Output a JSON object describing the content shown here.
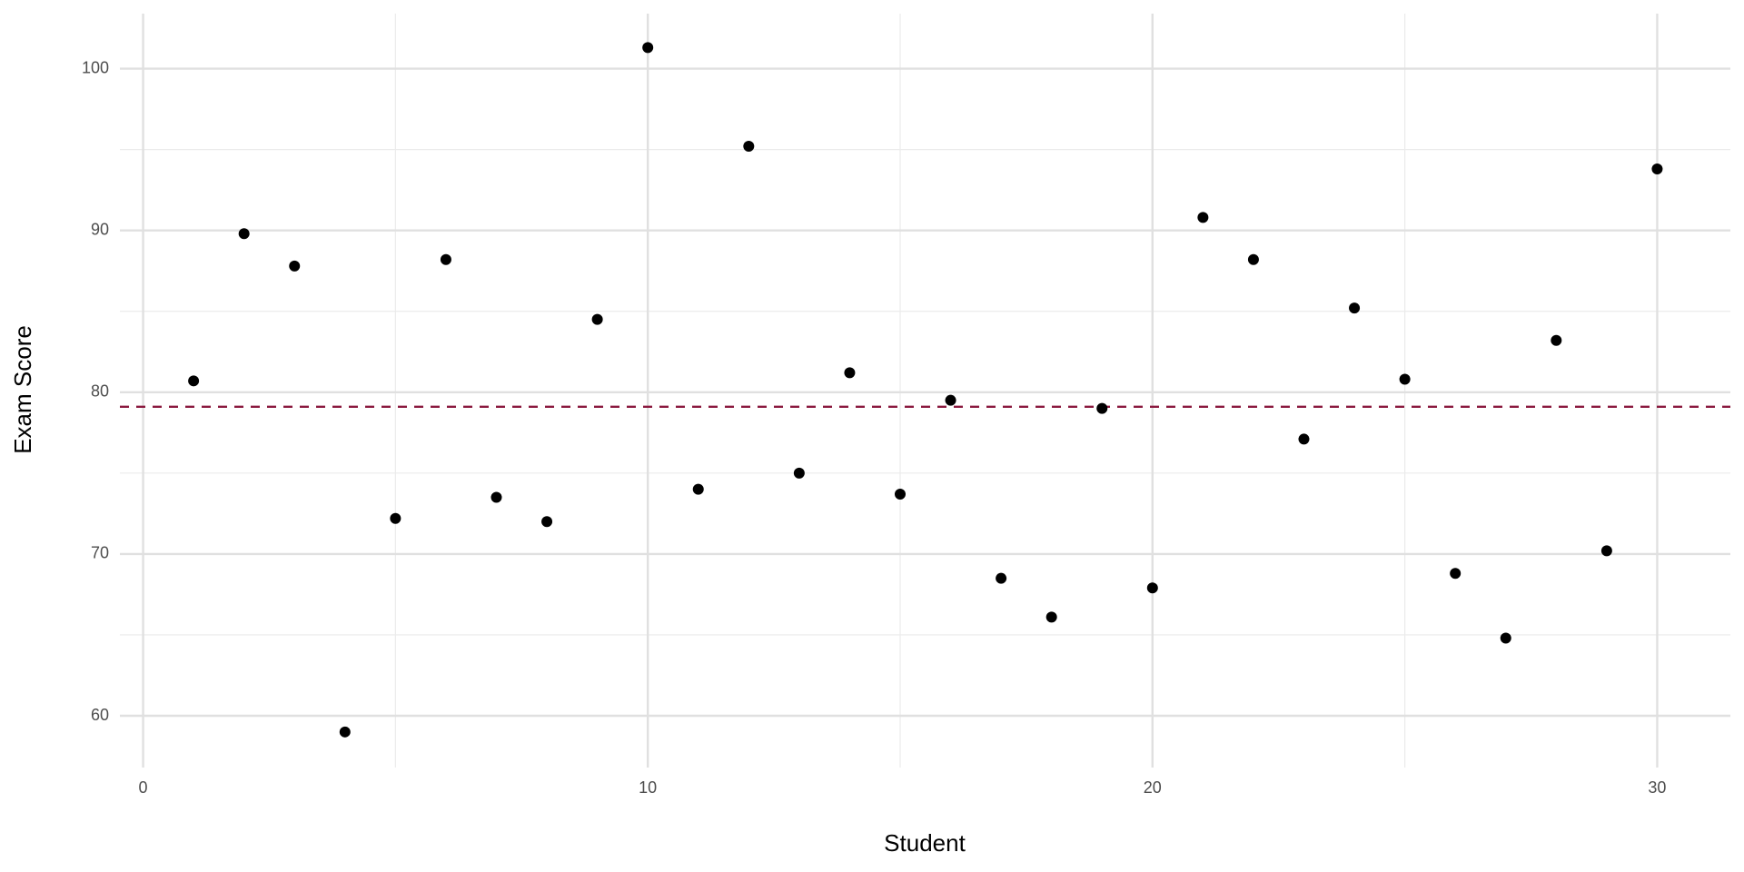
{
  "chart_data": {
    "type": "scatter",
    "xlabel": "Student",
    "ylabel": "Exam Score",
    "x": [
      1,
      2,
      3,
      4,
      5,
      6,
      7,
      8,
      9,
      10,
      11,
      12,
      13,
      14,
      15,
      16,
      17,
      18,
      19,
      20,
      21,
      22,
      23,
      24,
      25,
      26,
      27,
      28,
      29,
      30
    ],
    "series": [
      {
        "color": "#000000",
        "values": [
          80.7,
          89.8,
          87.8,
          59.0,
          72.2,
          88.2,
          73.5,
          72.0,
          84.5,
          101.3,
          74.0,
          95.2,
          75.0,
          81.2,
          73.7,
          79.5,
          68.5,
          66.1,
          79.0,
          67.9,
          90.8,
          88.2,
          77.1,
          85.2,
          80.8,
          68.8,
          64.8,
          83.2,
          70.2,
          93.8
        ]
      }
    ],
    "hline": {
      "value": 79.1,
      "color": "#8b1a3f",
      "dashed": true
    },
    "xlim": [
      -0.46,
      31.45
    ],
    "ylim": [
      56.8,
      103.4
    ],
    "xticks": [
      0,
      10,
      20,
      30
    ],
    "yticks": [
      60,
      70,
      80,
      90,
      100
    ],
    "xminor": [
      5,
      15,
      25
    ],
    "yminor": [
      65,
      75,
      85,
      95
    ],
    "grid": true
  }
}
